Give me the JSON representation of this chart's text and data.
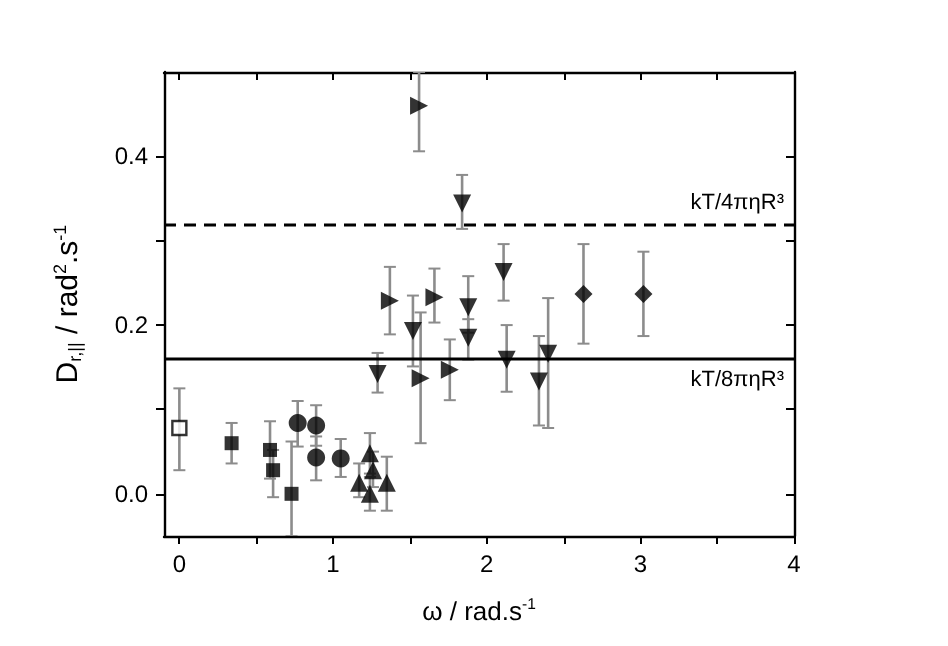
{
  "chart_data": {
    "type": "scatter",
    "xlabel": "ω / rad.s$^{-1}$",
    "ylabel": "D$_{r,||}$ / rad$^{2}$.s$^{-1}$",
    "xlim": [
      -0.1,
      4
    ],
    "ylim": [
      -0.05,
      0.5
    ],
    "xticks": [
      0,
      {
        "value": 0.5,
        "label": null
      },
      1,
      {
        "value": 1.5,
        "label": null
      },
      2,
      {
        "value": 2.5,
        "label": null
      },
      3,
      {
        "value": 3.5,
        "label": null
      },
      4
    ],
    "yticks": [
      {
        "value": 0,
        "label": "0.0"
      },
      {
        "value": 0.1,
        "label": null
      },
      0.2,
      {
        "value": 0.3,
        "label": null
      },
      0.4
    ],
    "grid": false,
    "ref_lines": [
      {
        "axis": "y",
        "value": 0.318,
        "label": "kT/4πηR³",
        "line_style": "dashed",
        "color": "#000000"
      },
      {
        "axis": "y",
        "value": 0.159,
        "label": "kT/8πηR³",
        "line_style": "solid",
        "color": "#000000"
      }
    ],
    "series": [
      {
        "color": "#ffffff",
        "marker": "square",
        "x": [
          0
        ],
        "values": [
          0.078
        ],
        "errors": [
          [
            0.028,
            0.125
          ]
        ]
      },
      {
        "color": "#000000",
        "marker": "square",
        "x": [
          0.34,
          0.59,
          0.61,
          0.73
        ],
        "values": [
          0.06,
          0.052,
          0.028,
          0.0
        ],
        "errors": [
          [
            0.036,
            0.084
          ],
          [
            0.018,
            0.086
          ],
          [
            -0.004,
            0.052
          ],
          [
            -0.05,
            0.062
          ]
        ]
      },
      {
        "color": "#000000",
        "marker": "circle",
        "x": [
          0.77,
          0.89,
          0.89,
          1.05
        ],
        "values": [
          0.084,
          0.081,
          0.043,
          0.042
        ],
        "errors": [
          [
            0.056,
            0.11
          ],
          [
            0.057,
            0.105
          ],
          [
            0.016,
            0.068
          ],
          [
            0.02,
            0.065
          ]
        ]
      },
      {
        "color": "#000000",
        "marker": "triangle",
        "x": [
          1.17,
          1.24,
          1.26,
          1.24,
          1.35
        ],
        "values": [
          0.013,
          0.048,
          0.028,
          0.0,
          0.013
        ],
        "errors": [
          [
            -0.004,
            0.036
          ],
          [
            0.024,
            0.072
          ],
          [
            0.008,
            0.05
          ],
          [
            -0.02,
            0.02
          ],
          [
            -0.02,
            0.044
          ]
        ]
      },
      {
        "color": "#000000",
        "marker": "triangle-down",
        "x": [
          1.29,
          1.52,
          1.84,
          1.88,
          1.88,
          2.11,
          2.13,
          2.34,
          2.4
        ],
        "values": [
          0.142,
          0.193,
          0.344,
          0.221,
          0.185,
          0.263,
          0.159,
          0.133,
          0.166
        ],
        "errors": [
          [
            0.12,
            0.167
          ],
          [
            0.151,
            0.235
          ],
          [
            0.314,
            0.378
          ],
          [
            0.191,
            0.258
          ],
          [
            0.159,
            0.207
          ],
          [
            0.229,
            0.296
          ],
          [
            0.121,
            0.2
          ],
          [
            0.081,
            0.187
          ],
          [
            0.078,
            0.232
          ]
        ]
      },
      {
        "color": "#000000",
        "marker": "triangle-right",
        "x": [
          1.37,
          1.56,
          1.57,
          1.66,
          1.76
        ],
        "values": [
          0.229,
          0.46,
          0.137,
          0.233,
          0.147
        ],
        "errors": [
          [
            0.189,
            0.269
          ],
          [
            0.406,
            0.5
          ],
          [
            0.06,
            0.215
          ],
          [
            0.203,
            0.267
          ],
          [
            0.111,
            0.183
          ]
        ]
      },
      {
        "color": "#000000",
        "marker": "diamond",
        "x": [
          2.63,
          3.02
        ],
        "values": [
          0.237,
          0.237
        ],
        "errors": [
          [
            0.178,
            0.296
          ],
          [
            0.187,
            0.287
          ]
        ]
      }
    ]
  }
}
